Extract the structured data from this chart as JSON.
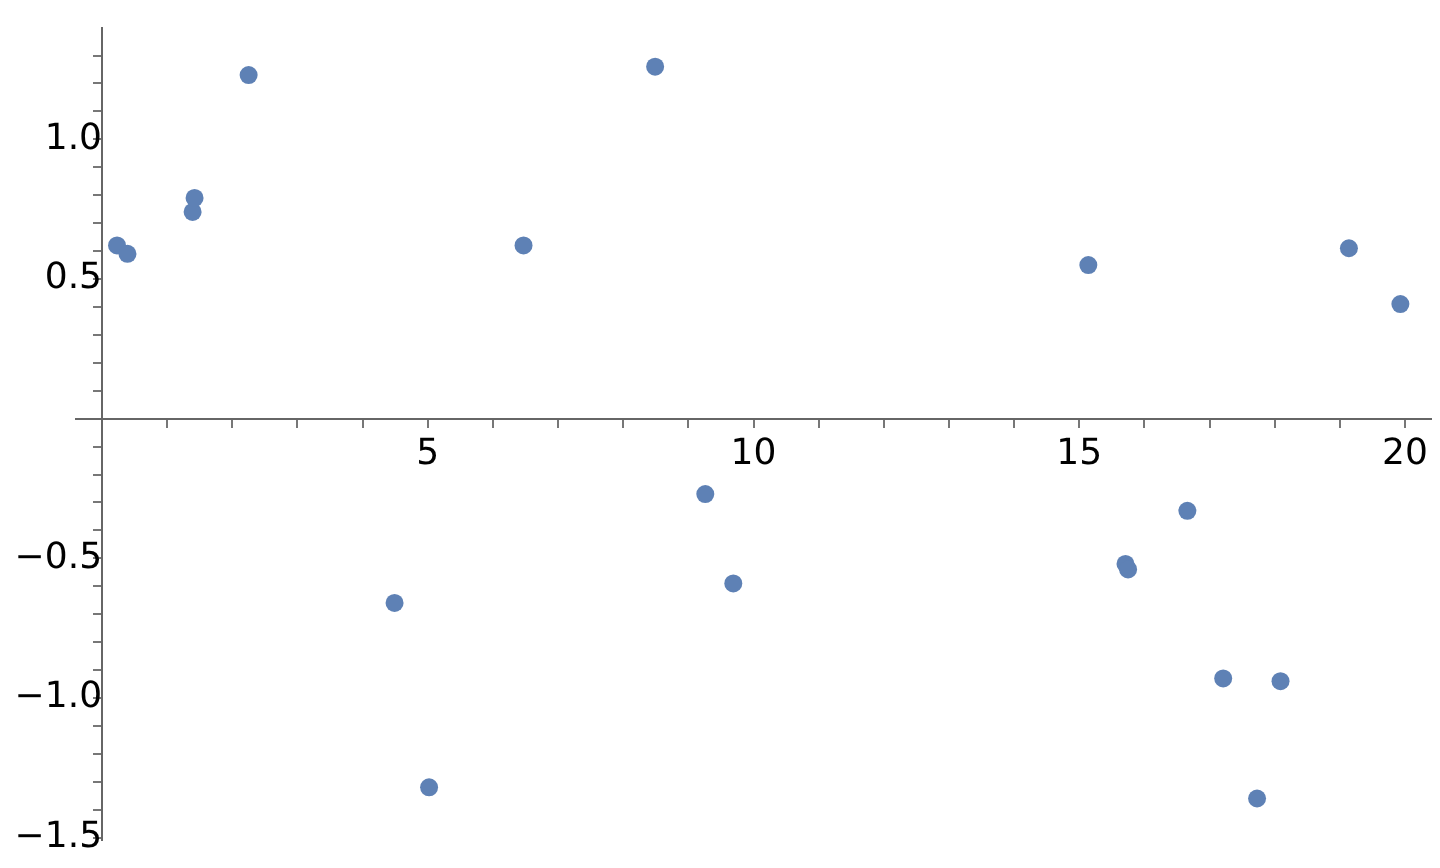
{
  "chart_data": {
    "type": "scatter",
    "marker": "circle",
    "color": "#5e81b5",
    "x": [
      0.23,
      0.39,
      1.39,
      1.42,
      2.25,
      6.47,
      8.49,
      15.14,
      19.14,
      19.93,
      4.49,
      5.02,
      9.26,
      9.69,
      15.71,
      15.75,
      16.66,
      17.21,
      18.09,
      17.73
    ],
    "values": [
      0.62,
      0.59,
      0.74,
      0.79,
      1.23,
      0.62,
      1.26,
      0.55,
      0.61,
      0.41,
      -0.66,
      -1.32,
      -0.27,
      -0.59,
      -0.52,
      -0.54,
      -0.33,
      -0.93,
      -0.94,
      -1.36
    ],
    "xlim": [
      -0.4,
      20.4
    ],
    "ylim": [
      -1.51,
      1.4
    ],
    "xticks": [
      {
        "value": 1,
        "label": null
      },
      {
        "value": 2,
        "label": null
      },
      {
        "value": 3,
        "label": null
      },
      {
        "value": 4,
        "label": null
      },
      5,
      {
        "value": 6,
        "label": null
      },
      {
        "value": 7,
        "label": null
      },
      {
        "value": 8,
        "label": null
      },
      {
        "value": 9,
        "label": null
      },
      10,
      {
        "value": 11,
        "label": null
      },
      {
        "value": 12,
        "label": null
      },
      {
        "value": 13,
        "label": null
      },
      {
        "value": 14,
        "label": null
      },
      15,
      {
        "value": 16,
        "label": null
      },
      {
        "value": 17,
        "label": null
      },
      {
        "value": 18,
        "label": null
      },
      {
        "value": 19,
        "label": null
      },
      20
    ],
    "yticks": [
      {
        "value": -1.5,
        "label": "−1.5"
      },
      {
        "value": -1.4,
        "label": null
      },
      {
        "value": -1.3,
        "label": null
      },
      {
        "value": -1.2,
        "label": null
      },
      {
        "value": -1.1,
        "label": null
      },
      {
        "value": -1,
        "label": "−1.0"
      },
      {
        "value": -0.9,
        "label": null
      },
      {
        "value": -0.8,
        "label": null
      },
      {
        "value": -0.7,
        "label": null
      },
      {
        "value": -0.6,
        "label": null
      },
      {
        "value": -0.5,
        "label": "−0.5"
      },
      {
        "value": -0.4,
        "label": null
      },
      {
        "value": -0.3,
        "label": null
      },
      {
        "value": -0.2,
        "label": null
      },
      {
        "value": -0.1,
        "label": null
      },
      {
        "value": 0.1,
        "label": null
      },
      {
        "value": 0.2,
        "label": null
      },
      {
        "value": 0.3,
        "label": null
      },
      {
        "value": 0.4,
        "label": null
      },
      {
        "value": 0.5,
        "label": "0.5"
      },
      {
        "value": 0.6,
        "label": null
      },
      {
        "value": 0.7,
        "label": null
      },
      {
        "value": 0.8,
        "label": null
      },
      {
        "value": 0.9,
        "label": null
      },
      {
        "value": 1,
        "label": "1.0"
      },
      {
        "value": 1.1,
        "label": null
      },
      {
        "value": 1.2,
        "label": null
      },
      {
        "value": 1.3,
        "label": null
      }
    ]
  }
}
